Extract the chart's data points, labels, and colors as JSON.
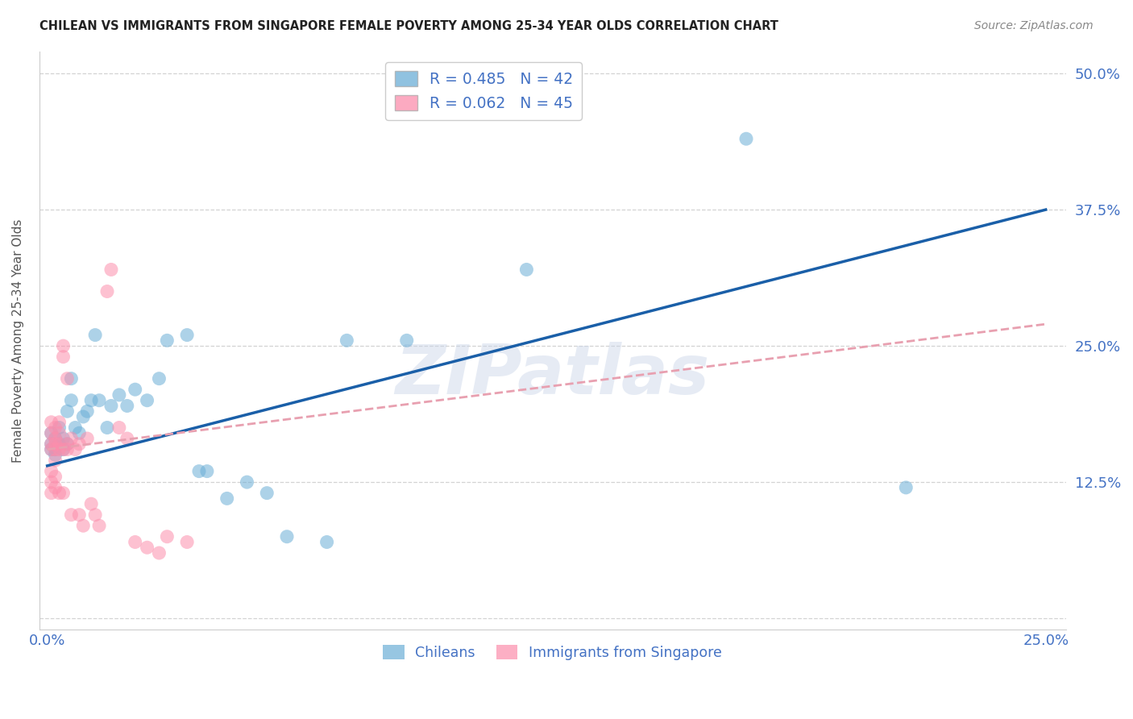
{
  "title": "CHILEAN VS IMMIGRANTS FROM SINGAPORE FEMALE POVERTY AMONG 25-34 YEAR OLDS CORRELATION CHART",
  "source": "Source: ZipAtlas.com",
  "ylabel": "Female Poverty Among 25-34 Year Olds",
  "xlim": [
    -0.002,
    0.255
  ],
  "ylim": [
    -0.01,
    0.52
  ],
  "chileans_color": "#6baed6",
  "immigrants_color": "#fc8eac",
  "chileans_R": 0.485,
  "chileans_N": 42,
  "immigrants_R": 0.062,
  "immigrants_N": 45,
  "watermark": "ZIPatlas",
  "regression_line_blue_color": "#1a5fa8",
  "regression_line_pink_color": "#e8a0b0",
  "blue_line_x0": 0.0,
  "blue_line_y0": 0.14,
  "blue_line_x1": 0.25,
  "blue_line_y1": 0.375,
  "pink_line_x0": 0.0,
  "pink_line_y0": 0.155,
  "pink_line_x1": 0.25,
  "pink_line_y1": 0.27,
  "chileans_x": [
    0.001,
    0.001,
    0.001,
    0.002,
    0.002,
    0.002,
    0.003,
    0.003,
    0.004,
    0.004,
    0.005,
    0.005,
    0.006,
    0.006,
    0.007,
    0.008,
    0.009,
    0.01,
    0.011,
    0.012,
    0.013,
    0.015,
    0.016,
    0.018,
    0.02,
    0.022,
    0.025,
    0.028,
    0.03,
    0.035,
    0.038,
    0.04,
    0.045,
    0.05,
    0.055,
    0.06,
    0.07,
    0.075,
    0.09,
    0.12,
    0.175,
    0.215
  ],
  "chileans_y": [
    0.155,
    0.16,
    0.17,
    0.15,
    0.155,
    0.165,
    0.16,
    0.175,
    0.155,
    0.165,
    0.16,
    0.19,
    0.22,
    0.2,
    0.175,
    0.17,
    0.185,
    0.19,
    0.2,
    0.26,
    0.2,
    0.175,
    0.195,
    0.205,
    0.195,
    0.21,
    0.2,
    0.22,
    0.255,
    0.26,
    0.135,
    0.135,
    0.11,
    0.125,
    0.115,
    0.075,
    0.07,
    0.255,
    0.255,
    0.32,
    0.44,
    0.12
  ],
  "immigrants_x": [
    0.001,
    0.001,
    0.001,
    0.001,
    0.001,
    0.001,
    0.001,
    0.002,
    0.002,
    0.002,
    0.002,
    0.002,
    0.002,
    0.002,
    0.003,
    0.003,
    0.003,
    0.003,
    0.003,
    0.004,
    0.004,
    0.004,
    0.004,
    0.005,
    0.005,
    0.005,
    0.006,
    0.006,
    0.007,
    0.008,
    0.008,
    0.009,
    0.01,
    0.011,
    0.012,
    0.013,
    0.015,
    0.016,
    0.018,
    0.02,
    0.022,
    0.025,
    0.028,
    0.03,
    0.035
  ],
  "immigrants_y": [
    0.155,
    0.16,
    0.17,
    0.18,
    0.135,
    0.125,
    0.115,
    0.145,
    0.155,
    0.16,
    0.165,
    0.175,
    0.13,
    0.12,
    0.155,
    0.16,
    0.17,
    0.18,
    0.115,
    0.155,
    0.25,
    0.24,
    0.115,
    0.155,
    0.16,
    0.22,
    0.165,
    0.095,
    0.155,
    0.16,
    0.095,
    0.085,
    0.165,
    0.105,
    0.095,
    0.085,
    0.3,
    0.32,
    0.175,
    0.165,
    0.07,
    0.065,
    0.06,
    0.075,
    0.07
  ]
}
